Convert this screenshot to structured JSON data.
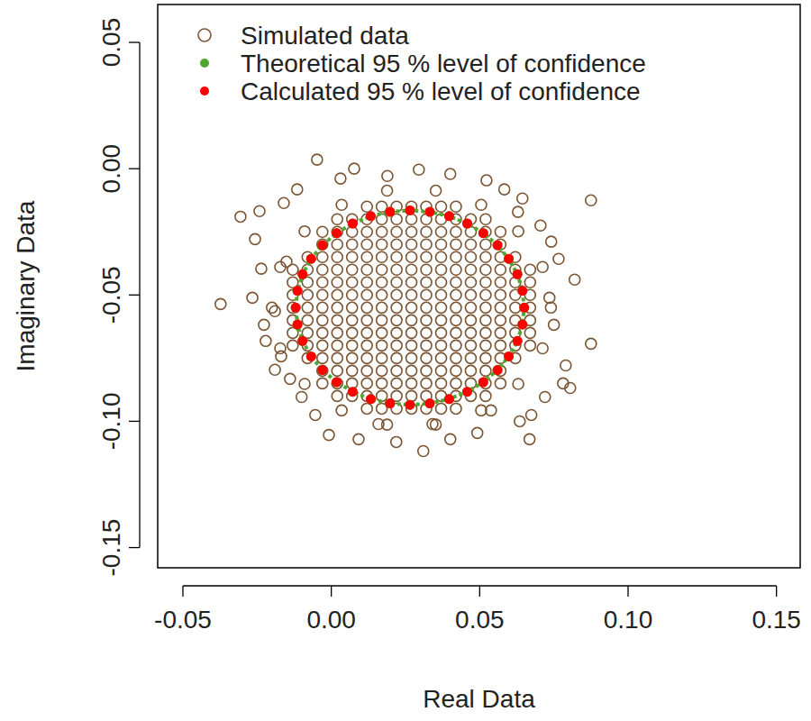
{
  "chart_data": {
    "type": "scatter",
    "x_label": "Real Data",
    "y_label": "Imaginary Data",
    "xlim": [
      -0.0585,
      0.158
    ],
    "ylim": [
      -0.158,
      0.065
    ],
    "xticks": [
      -0.05,
      {
        "value": 0,
        "label": "0.00"
      },
      0.05,
      {
        "value": 0.1,
        "label": "0.10"
      },
      0.15
    ],
    "yticks": [
      -0.15,
      {
        "value": -0.1,
        "label": "-0.10"
      },
      -0.05,
      {
        "value": 0,
        "label": "0.00"
      },
      0.05
    ],
    "legend": "top-left",
    "grid": false,
    "series": [
      {
        "name": "Simulated data",
        "color": "#7b5533",
        "marker": "open_circle",
        "x": [
          0.012,
          0.017,
          0.022,
          0.027,
          0.032,
          0.037,
          0.042,
          0.002,
          0.007,
          0.012,
          0.017,
          0.022,
          0.027,
          0.032,
          0.037,
          0.042,
          0.047,
          0.052,
          -0.003,
          0.002,
          0.007,
          0.012,
          0.017,
          0.022,
          0.027,
          0.032,
          0.037,
          0.042,
          0.047,
          0.052,
          0.057,
          -0.003,
          0.002,
          0.007,
          0.012,
          0.017,
          0.022,
          0.027,
          0.032,
          0.037,
          0.042,
          0.047,
          0.052,
          0.057,
          -0.008,
          -0.003,
          0.002,
          0.007,
          0.012,
          0.017,
          0.022,
          0.027,
          0.032,
          0.037,
          0.042,
          0.047,
          0.052,
          0.057,
          0.062,
          -0.013,
          -0.008,
          -0.003,
          0.002,
          0.007,
          0.012,
          0.017,
          0.022,
          0.027,
          0.032,
          0.037,
          0.042,
          0.047,
          0.052,
          0.057,
          0.062,
          0.067,
          -0.013,
          -0.008,
          -0.003,
          0.002,
          0.007,
          0.012,
          0.017,
          0.022,
          0.027,
          0.032,
          0.037,
          0.042,
          0.047,
          0.052,
          0.057,
          0.062,
          0.067,
          -0.013,
          -0.008,
          -0.003,
          0.002,
          0.007,
          0.012,
          0.017,
          0.022,
          0.027,
          0.032,
          0.037,
          0.042,
          0.047,
          0.052,
          0.057,
          0.062,
          0.067,
          -0.013,
          -0.008,
          -0.003,
          0.002,
          0.007,
          0.012,
          0.017,
          0.022,
          0.027,
          0.032,
          0.037,
          0.042,
          0.047,
          0.052,
          0.057,
          0.062,
          0.067,
          -0.013,
          -0.008,
          -0.003,
          0.002,
          0.007,
          0.012,
          0.017,
          0.022,
          0.027,
          0.032,
          0.037,
          0.042,
          0.047,
          0.052,
          0.057,
          0.062,
          0.067,
          -0.013,
          -0.008,
          -0.003,
          0.002,
          0.007,
          0.012,
          0.017,
          0.022,
          0.027,
          0.032,
          0.037,
          0.042,
          0.047,
          0.052,
          0.057,
          0.062,
          0.067,
          -0.013,
          -0.008,
          -0.003,
          0.002,
          0.007,
          0.012,
          0.017,
          0.022,
          0.027,
          0.032,
          0.037,
          0.042,
          0.047,
          0.052,
          0.057,
          0.062,
          0.067,
          -0.008,
          -0.003,
          0.002,
          0.007,
          0.012,
          0.017,
          0.022,
          0.027,
          0.032,
          0.037,
          0.042,
          0.047,
          0.052,
          0.057,
          0.062,
          -0.003,
          0.002,
          0.007,
          0.012,
          0.017,
          0.022,
          0.027,
          0.032,
          0.037,
          0.042,
          0.047,
          0.052,
          0.057,
          -0.003,
          0.002,
          0.007,
          0.012,
          0.017,
          0.022,
          0.027,
          0.032,
          0.037,
          0.042,
          0.047,
          0.052,
          0.057,
          0.002,
          0.007,
          0.012,
          0.017,
          0.022,
          0.027,
          0.032,
          0.037,
          0.042,
          0.047,
          0.052,
          0.012,
          0.017,
          0.022,
          0.027,
          0.032,
          0.037,
          0.042,
          -0.0048,
          0.0875,
          0.0875,
          -0.0373,
          -0.0306,
          -0.0242,
          -0.0257,
          -0.0236,
          -0.0266,
          -0.0227,
          -0.0221,
          -0.019,
          -0.0139,
          -0.01,
          -0.0008,
          0.0092,
          0.0219,
          0.031,
          0.0401,
          0.0492,
          0.0668,
          0.0674,
          0.0635,
          0.0781,
          0.0805,
          0.079,
          0.082,
          0.0766,
          0.0741,
          0.0705,
          0.0629,
          0.0583,
          0.0523,
          0.0401,
          0.0295,
          0.0189,
          0.0077,
          0.0031,
          -0.0115,
          -0.016,
          -0.0151,
          -0.019,
          -0.0169,
          -0.0054,
          0.0159,
          0.0341,
          0.0538,
          0.072,
          0.075,
          0.0735,
          0.0644,
          0.074,
          0.0712,
          0.063,
          0.0505,
          0.0352,
          0.0188,
          0.0035,
          -0.009,
          -0.0172,
          -0.02,
          -0.0172,
          -0.009,
          0.0035,
          0.0188,
          0.0352,
          0.0505,
          0.063,
          0.0712
        ],
        "values": [
          -0.095,
          -0.095,
          -0.095,
          -0.095,
          -0.095,
          -0.095,
          -0.095,
          -0.09,
          -0.09,
          -0.09,
          -0.09,
          -0.09,
          -0.09,
          -0.09,
          -0.09,
          -0.09,
          -0.09,
          -0.09,
          -0.085,
          -0.085,
          -0.085,
          -0.085,
          -0.085,
          -0.085,
          -0.085,
          -0.085,
          -0.085,
          -0.085,
          -0.085,
          -0.085,
          -0.085,
          -0.08,
          -0.08,
          -0.08,
          -0.08,
          -0.08,
          -0.08,
          -0.08,
          -0.08,
          -0.08,
          -0.08,
          -0.08,
          -0.08,
          -0.08,
          -0.075,
          -0.075,
          -0.075,
          -0.075,
          -0.075,
          -0.075,
          -0.075,
          -0.075,
          -0.075,
          -0.075,
          -0.075,
          -0.075,
          -0.075,
          -0.075,
          -0.075,
          -0.07,
          -0.07,
          -0.07,
          -0.07,
          -0.07,
          -0.07,
          -0.07,
          -0.07,
          -0.07,
          -0.07,
          -0.07,
          -0.07,
          -0.07,
          -0.07,
          -0.07,
          -0.07,
          -0.07,
          -0.065,
          -0.065,
          -0.065,
          -0.065,
          -0.065,
          -0.065,
          -0.065,
          -0.065,
          -0.065,
          -0.065,
          -0.065,
          -0.065,
          -0.065,
          -0.065,
          -0.065,
          -0.065,
          -0.065,
          -0.06,
          -0.06,
          -0.06,
          -0.06,
          -0.06,
          -0.06,
          -0.06,
          -0.06,
          -0.06,
          -0.06,
          -0.06,
          -0.06,
          -0.06,
          -0.06,
          -0.06,
          -0.06,
          -0.06,
          -0.055,
          -0.055,
          -0.055,
          -0.055,
          -0.055,
          -0.055,
          -0.055,
          -0.055,
          -0.055,
          -0.055,
          -0.055,
          -0.055,
          -0.055,
          -0.055,
          -0.055,
          -0.055,
          -0.055,
          -0.05,
          -0.05,
          -0.05,
          -0.05,
          -0.05,
          -0.05,
          -0.05,
          -0.05,
          -0.05,
          -0.05,
          -0.05,
          -0.05,
          -0.05,
          -0.05,
          -0.05,
          -0.05,
          -0.05,
          -0.045,
          -0.045,
          -0.045,
          -0.045,
          -0.045,
          -0.045,
          -0.045,
          -0.045,
          -0.045,
          -0.045,
          -0.045,
          -0.045,
          -0.045,
          -0.045,
          -0.045,
          -0.045,
          -0.045,
          -0.04,
          -0.04,
          -0.04,
          -0.04,
          -0.04,
          -0.04,
          -0.04,
          -0.04,
          -0.04,
          -0.04,
          -0.04,
          -0.04,
          -0.04,
          -0.04,
          -0.04,
          -0.04,
          -0.04,
          -0.035,
          -0.035,
          -0.035,
          -0.035,
          -0.035,
          -0.035,
          -0.035,
          -0.035,
          -0.035,
          -0.035,
          -0.035,
          -0.035,
          -0.035,
          -0.035,
          -0.035,
          -0.03,
          -0.03,
          -0.03,
          -0.03,
          -0.03,
          -0.03,
          -0.03,
          -0.03,
          -0.03,
          -0.03,
          -0.03,
          -0.03,
          -0.03,
          -0.025,
          -0.025,
          -0.025,
          -0.025,
          -0.025,
          -0.025,
          -0.025,
          -0.025,
          -0.025,
          -0.025,
          -0.025,
          -0.025,
          -0.025,
          -0.02,
          -0.02,
          -0.02,
          -0.02,
          -0.02,
          -0.02,
          -0.02,
          -0.02,
          -0.02,
          -0.02,
          -0.02,
          -0.015,
          -0.015,
          -0.015,
          -0.015,
          -0.015,
          -0.015,
          -0.015,
          0.0036,
          -0.0125,
          -0.0693,
          -0.0536,
          -0.019,
          -0.0168,
          -0.0279,
          -0.0396,
          -0.0511,
          -0.0618,
          -0.0682,
          -0.0796,
          -0.0832,
          -0.0904,
          -0.1054,
          -0.1071,
          -0.1082,
          -0.1118,
          -0.1071,
          -0.1046,
          -0.1071,
          -0.0975,
          -0.1,
          -0.085,
          -0.0868,
          -0.0779,
          -0.0439,
          -0.0357,
          -0.0289,
          -0.0225,
          -0.0171,
          -0.0082,
          -0.0046,
          -0.0021,
          -0.0004,
          -0.0029,
          0,
          -0.0039,
          -0.0082,
          -0.0136,
          -0.0368,
          -0.0564,
          -0.0743,
          -0.0975,
          -0.1011,
          -0.1011,
          -0.0957,
          -0.0904,
          -0.0618,
          -0.0511,
          -0.0118,
          -0.055,
          -0.0389,
          -0.0248,
          -0.0143,
          -0.0087,
          -0.0087,
          -0.0143,
          -0.0248,
          -0.0389,
          -0.055,
          -0.0711,
          -0.0852,
          -0.0957,
          -0.1013,
          -0.1013,
          -0.0957,
          -0.0852,
          -0.0711
        ]
      },
      {
        "name": "Theoretical 95 % level of confidence",
        "color": "#4fa82e",
        "marker": "point",
        "line_style": "dotted",
        "x": [
          0.065,
          0.0644,
          0.0627,
          0.0598,
          0.056,
          0.0512,
          0.0458,
          0.0397,
          0.0332,
          0.0265,
          0.0198,
          0.0133,
          0.0072,
          0.0018,
          -0.003,
          -0.0068,
          -0.0097,
          -0.0114,
          -0.012,
          -0.0114,
          -0.0097,
          -0.0068,
          -0.003,
          0.0018,
          0.0072,
          0.0133,
          0.0198,
          0.0265,
          0.0332,
          0.0397,
          0.0458,
          0.0512,
          0.056,
          0.0598,
          0.0627,
          0.0644
        ],
        "values": [
          -0.055,
          -0.0483,
          -0.0418,
          -0.0357,
          -0.0303,
          -0.0255,
          -0.0217,
          -0.0188,
          -0.0171,
          -0.0165,
          -0.0171,
          -0.0188,
          -0.0217,
          -0.0255,
          -0.0303,
          -0.0357,
          -0.0418,
          -0.0483,
          -0.055,
          -0.0617,
          -0.0682,
          -0.0743,
          -0.0797,
          -0.0845,
          -0.0883,
          -0.0912,
          -0.0929,
          -0.0935,
          -0.0929,
          -0.0912,
          -0.0883,
          -0.0845,
          -0.0797,
          -0.0743,
          -0.0682,
          -0.0617
        ]
      },
      {
        "name": "Calculated 95 % level of confidence",
        "color": "#ff0000",
        "marker": "point",
        "x": [
          0.065,
          0.0644,
          0.0627,
          0.0598,
          0.056,
          0.0512,
          0.0458,
          0.0397,
          0.0332,
          0.0265,
          0.0198,
          0.0133,
          0.0072,
          0.0018,
          -0.003,
          -0.0068,
          -0.0097,
          -0.0114,
          -0.012,
          -0.0114,
          -0.0097,
          -0.0068,
          -0.003,
          0.0018,
          0.0072,
          0.0133,
          0.0198,
          0.0265,
          0.0332,
          0.0397,
          0.0458,
          0.0512,
          0.056,
          0.0598,
          0.0627,
          0.0644
        ],
        "values": [
          -0.055,
          -0.0483,
          -0.0418,
          -0.0357,
          -0.0303,
          -0.0255,
          -0.0217,
          -0.0188,
          -0.0171,
          -0.0165,
          -0.0171,
          -0.0188,
          -0.0217,
          -0.0255,
          -0.0303,
          -0.0357,
          -0.0418,
          -0.0483,
          -0.055,
          -0.0617,
          -0.0682,
          -0.0743,
          -0.0797,
          -0.0845,
          -0.0883,
          -0.0912,
          -0.0929,
          -0.0935,
          -0.0929,
          -0.0912,
          -0.0883,
          -0.0845,
          -0.0797,
          -0.0743,
          -0.0682,
          -0.0617
        ]
      }
    ]
  }
}
